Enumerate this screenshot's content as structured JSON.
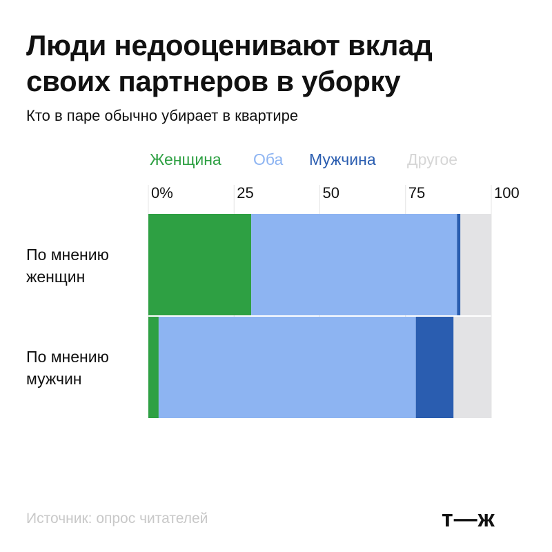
{
  "chart_data": {
    "type": "bar",
    "stacked": true,
    "orientation": "horizontal",
    "title_lines": [
      "Люди недооценивают вклад",
      "своих партнеров в уборку"
    ],
    "subtitle": "Кто в паре обычно убирает в квартире",
    "categories": [
      "По мнению женщин",
      "По мнению мужчин"
    ],
    "category_label_lines": [
      [
        "По мнению",
        "женщин"
      ],
      [
        "По мнению",
        "мужчин"
      ]
    ],
    "series": [
      {
        "name": "Женщина",
        "color": "#2ea043",
        "values": [
          30,
          3
        ]
      },
      {
        "name": "Оба",
        "color": "#8db4f2",
        "values": [
          60,
          75
        ]
      },
      {
        "name": "Мужчина",
        "color": "#2a5db0",
        "values": [
          1,
          11
        ]
      },
      {
        "name": "Другое",
        "color": "#e3e3e5",
        "values": [
          9,
          11
        ]
      }
    ],
    "legend_colors": [
      "#2ea043",
      "#8db4f2",
      "#2a5db0",
      "#d6d6d6"
    ],
    "x_ticks": [
      "0%",
      "25",
      "50",
      "75",
      "100"
    ],
    "xlim": [
      0,
      100
    ],
    "grid": true,
    "legend_position": "top"
  },
  "source": "Источник: опрос читателей",
  "logo": "т—ж"
}
